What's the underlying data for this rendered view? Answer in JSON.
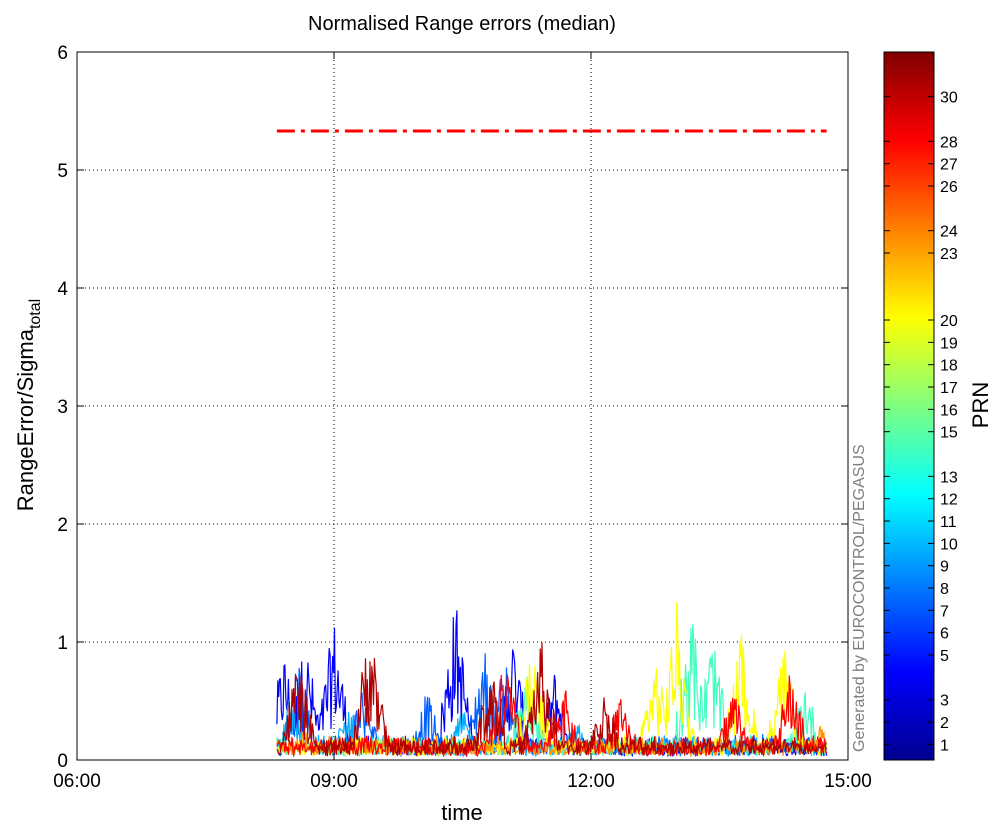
{
  "chart_data": {
    "type": "line",
    "title": "Normalised Range errors (median)",
    "xlabel": "time",
    "ylabel_main": "RangeError/Sigma",
    "ylabel_sub": "total",
    "xlim": [
      "06:00",
      "15:00"
    ],
    "ylim": [
      0,
      6
    ],
    "x_ticks": [
      "06:00",
      "09:00",
      "12:00",
      "15:00"
    ],
    "y_ticks": [
      0,
      1,
      2,
      3,
      4,
      5,
      6
    ],
    "grid": true,
    "threshold": {
      "value": 5.33,
      "start": "08:20",
      "end": "14:45",
      "color": "#ff0000",
      "style": "dash-dot"
    },
    "data_window": {
      "start": "08:20",
      "end": "14:45"
    },
    "colorbar": {
      "label": "PRN",
      "ticks": [
        1,
        2,
        3,
        5,
        6,
        7,
        8,
        9,
        10,
        11,
        12,
        13,
        15,
        16,
        17,
        18,
        19,
        20,
        23,
        24,
        26,
        27,
        28,
        30
      ],
      "range": [
        0.3,
        32
      ],
      "colormap": "jet"
    },
    "series": [
      {
        "prn": 5,
        "color": "#0000ff",
        "peaks": [
          [
            "08:25",
            0.95
          ],
          [
            "08:40",
            1.05
          ],
          [
            "09:00",
            1.22
          ],
          [
            "10:25",
            1.4
          ],
          [
            "11:05",
            1.08
          ],
          [
            "11:35",
            0.8
          ]
        ]
      },
      {
        "prn": 8,
        "color": "#0060ff",
        "peaks": [
          [
            "08:35",
            0.85
          ],
          [
            "09:20",
            0.7
          ],
          [
            "10:05",
            0.6
          ],
          [
            "10:45",
            1.0
          ],
          [
            "11:00",
            0.9
          ]
        ]
      },
      {
        "prn": 11,
        "color": "#00b0ff",
        "peaks": [
          [
            "08:30",
            0.6
          ],
          [
            "09:10",
            0.5
          ],
          [
            "10:30",
            0.45
          ],
          [
            "11:50",
            0.35
          ]
        ]
      },
      {
        "prn": 17,
        "color": "#40ffc0",
        "peaks": [
          [
            "11:15",
            0.9
          ],
          [
            "13:10",
            1.35
          ],
          [
            "13:25",
            1.1
          ],
          [
            "14:30",
            0.7
          ]
        ]
      },
      {
        "prn": 20,
        "color": "#ffff00",
        "peaks": [
          [
            "11:20",
            1.05
          ],
          [
            "12:45",
            0.9
          ],
          [
            "13:00",
            1.35
          ],
          [
            "13:45",
            1.12
          ],
          [
            "14:15",
            1.0
          ]
        ]
      },
      {
        "prn": 24,
        "color": "#ff9000",
        "peaks": [
          [
            "08:40",
            0.3
          ],
          [
            "10:10",
            0.25
          ],
          [
            "12:30",
            0.2
          ],
          [
            "14:40",
            0.3
          ]
        ]
      },
      {
        "prn": 28,
        "color": "#ff0000",
        "peaks": [
          [
            "11:00",
            0.9
          ],
          [
            "11:40",
            0.7
          ],
          [
            "12:20",
            0.55
          ],
          [
            "13:40",
            0.65
          ],
          [
            "14:20",
            0.8
          ]
        ]
      },
      {
        "prn": 30,
        "color": "#b00000",
        "peaks": [
          [
            "08:35",
            0.9
          ],
          [
            "09:25",
            1.2
          ],
          [
            "10:50",
            0.85
          ],
          [
            "11:25",
            1.05
          ],
          [
            "12:10",
            0.6
          ]
        ]
      }
    ]
  },
  "credit": "Generated by EUROCONTROL/PEGASUS"
}
